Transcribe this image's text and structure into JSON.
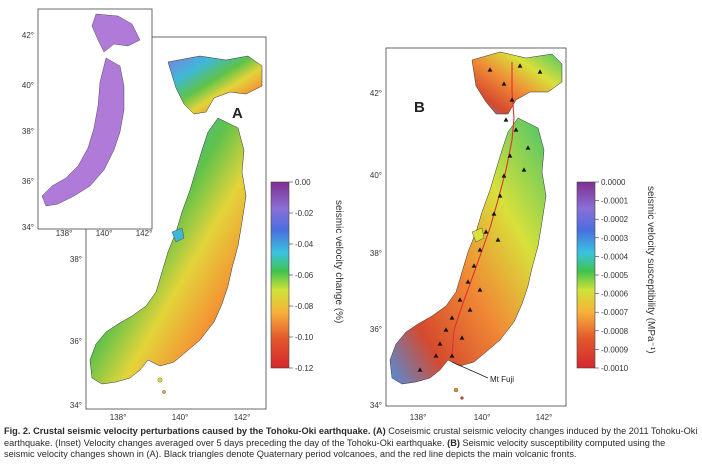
{
  "panels": {
    "a": {
      "letter": "A",
      "x_ticks": [
        "138°",
        "140°",
        "142°"
      ],
      "y_ticks": [
        "34°",
        "36°",
        "38°"
      ],
      "colorbar": {
        "title": "seismic velocity change (%)",
        "ticks": [
          "0.00",
          "-0.02",
          "-0.04",
          "-0.06",
          "-0.08",
          "-0.10",
          "-0.12"
        ]
      },
      "inset": {
        "x_ticks": [
          "138°",
          "140°",
          "142°"
        ],
        "y_ticks": [
          "34°",
          "36°",
          "38°",
          "40°",
          "42°"
        ]
      }
    },
    "b": {
      "letter": "B",
      "x_ticks": [
        "138°",
        "140°",
        "142°"
      ],
      "y_ticks": [
        "34°",
        "36°",
        "38°",
        "40°",
        "42°"
      ],
      "annotation": "Mt Fuji",
      "colorbar": {
        "title": "seismic velocity susceptibility (MPa⁻¹)",
        "ticks": [
          "0.0000",
          "-0.0001",
          "-0.0002",
          "-0.0003",
          "-0.0004",
          "-0.0005",
          "-0.0006",
          "-0.0007",
          "-0.0008",
          "-0.0009",
          "-0.0010"
        ]
      }
    }
  },
  "colors": {
    "scale": [
      "#7f2f8f",
      "#8a6fd6",
      "#4a6fe0",
      "#39c3e0",
      "#3fc24f",
      "#cfe23a",
      "#f7b23a",
      "#e3582d",
      "#d3282d"
    ],
    "inset_map": "#b07ad8",
    "volcano_triangle": "#111111",
    "volcanic_front": "#e23030"
  },
  "caption": {
    "title": "Fig. 2. Crustal seismic velocity perturbations caused by the Tohoku-Oki earthquake.",
    "a_label": "(A)",
    "a_text": " Coseismic crustal seismic velocity changes induced by the 2011 Tohoku-Oki earthquake. (Inset) Velocity changes averaged over 5 days preceding the day of the Tohoku-Oki earthquake. ",
    "b_label": "(B)",
    "b_text": " Seismic velocity susceptibility computed using the seismic velocity changes shown in (A). Black triangles denote Quaternary period volcanoes, and the red line depicts the main volcanic fronts."
  }
}
